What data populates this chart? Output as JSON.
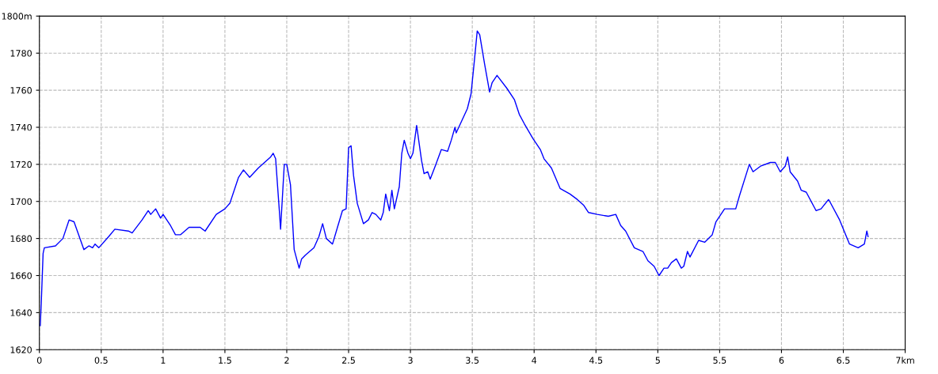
{
  "chart_data": {
    "type": "line",
    "x": [
      0.007,
      0.015,
      0.03,
      0.04,
      0.13,
      0.19,
      0.24,
      0.28,
      0.36,
      0.4,
      0.43,
      0.45,
      0.48,
      0.56,
      0.61,
      0.72,
      0.75,
      0.83,
      0.88,
      0.9,
      0.94,
      0.98,
      1.0,
      1.06,
      1.1,
      1.14,
      1.21,
      1.3,
      1.34,
      1.43,
      1.5,
      1.54,
      1.61,
      1.65,
      1.7,
      1.77,
      1.87,
      1.89,
      1.91,
      1.94,
      1.95,
      1.98,
      2.0,
      2.03,
      2.06,
      2.1,
      2.12,
      2.15,
      2.22,
      2.26,
      2.29,
      2.32,
      2.37,
      2.41,
      2.45,
      2.48,
      2.5,
      2.52,
      2.54,
      2.57,
      2.62,
      2.66,
      2.69,
      2.72,
      2.76,
      2.78,
      2.8,
      2.83,
      2.85,
      2.87,
      2.91,
      2.93,
      2.95,
      2.98,
      3.0,
      3.02,
      3.05,
      3.09,
      3.11,
      3.14,
      3.16,
      3.2,
      3.25,
      3.3,
      3.33,
      3.36,
      3.37,
      3.46,
      3.49,
      3.52,
      3.54,
      3.56,
      3.6,
      3.64,
      3.66,
      3.7,
      3.78,
      3.84,
      3.88,
      3.92,
      3.99,
      4.05,
      4.08,
      4.14,
      4.21,
      4.29,
      4.35,
      4.4,
      4.44,
      4.51,
      4.6,
      4.66,
      4.7,
      4.74,
      4.81,
      4.88,
      4.92,
      4.97,
      5.01,
      5.05,
      5.08,
      5.11,
      5.15,
      5.19,
      5.21,
      5.24,
      5.26,
      5.33,
      5.38,
      5.44,
      5.47,
      5.54,
      5.63,
      5.66,
      5.74,
      5.77,
      5.83,
      5.91,
      5.95,
      5.99,
      6.03,
      6.05,
      6.07,
      6.13,
      6.16,
      6.2,
      6.28,
      6.32,
      6.38,
      6.39,
      6.47,
      6.55,
      6.62,
      6.67,
      6.69,
      6.7
    ],
    "series": [
      {
        "color": "#0000ff",
        "values": [
          1633,
          1645,
          1672,
          1675,
          1676,
          1680,
          1690,
          1689,
          1674,
          1676,
          1675,
          1677,
          1675,
          1681,
          1685,
          1684,
          1683,
          1690,
          1695,
          1693,
          1696,
          1691,
          1693,
          1687,
          1682,
          1682,
          1686,
          1686,
          1684,
          1693,
          1696,
          1699,
          1713,
          1717,
          1713,
          1718,
          1724,
          1726,
          1723,
          1695,
          1685,
          1720,
          1720,
          1709,
          1674,
          1664,
          1669,
          1671,
          1675,
          1681,
          1688,
          1680,
          1677,
          1686,
          1695,
          1696,
          1729,
          1730,
          1714,
          1699,
          1688,
          1690,
          1694,
          1693,
          1690,
          1694,
          1704,
          1695,
          1706,
          1696,
          1708,
          1726,
          1733,
          1726,
          1723,
          1726,
          1741,
          1722,
          1715,
          1716,
          1712,
          1719,
          1728,
          1727,
          1733,
          1740,
          1737,
          1750,
          1758,
          1778,
          1792,
          1790,
          1774,
          1759,
          1764,
          1768,
          1761,
          1755,
          1747,
          1742,
          1734,
          1728,
          1723,
          1718,
          1707,
          1704,
          1701,
          1698,
          1694,
          1693,
          1692,
          1693,
          1687,
          1684,
          1675,
          1673,
          1668,
          1665,
          1660,
          1664,
          1664,
          1667,
          1669,
          1664,
          1665,
          1673,
          1670,
          1679,
          1678,
          1682,
          1689,
          1696,
          1696,
          1703,
          1720,
          1716,
          1719,
          1721,
          1721,
          1716,
          1719,
          1724,
          1716,
          1711,
          1706,
          1705,
          1695,
          1696,
          1701,
          1700,
          1690,
          1677,
          1675,
          1677,
          1684,
          1681
        ]
      }
    ],
    "xlim": [
      0,
      7
    ],
    "ylim": [
      1620,
      1800
    ],
    "xticks": [
      0,
      0.5,
      1,
      1.5,
      2,
      2.5,
      3,
      3.5,
      4,
      4.5,
      5,
      5.5,
      6,
      6.5,
      {
        "value": 7,
        "label": "7km"
      }
    ],
    "yticks": [
      1620,
      1640,
      1660,
      1680,
      1700,
      1720,
      1740,
      1760,
      1780,
      {
        "value": 1800,
        "label": "1800m"
      }
    ],
    "grid": true,
    "line_style": "solid",
    "marker": "none"
  }
}
